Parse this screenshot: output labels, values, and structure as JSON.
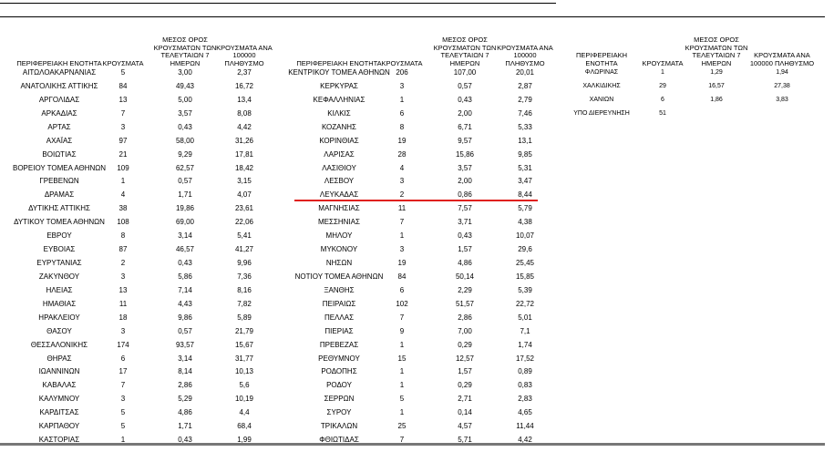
{
  "tables": [
    {
      "headers": [
        "ΠΕΡΙΦΕΡΕΙΑΚΗ ΕΝΟΤΗΤΑ",
        "ΚΡΟΥΣΜΑΤΑ",
        "ΜΕΣΟΣ ΟΡΟΣ ΚΡΟΥΣΜΑΤΩΝ ΤΩΝ ΤΕΛΕΥΤΑΙΩΝ 7 ΗΜΕΡΩΝ",
        "ΚΡΟΥΣΜΑΤΑ ΑΝΑ 100000 ΠΛΗΘΥΣΜΟ"
      ],
      "rows": [
        [
          "ΑΙΤΩΛΟΑΚΑΡΝΑΝΙΑΣ",
          "5",
          "3,00",
          "2,37"
        ],
        [
          "ΑΝΑΤΟΛΙΚΗΣ ΑΤΤΙΚΗΣ",
          "84",
          "49,43",
          "16,72"
        ],
        [
          "ΑΡΓΟΛΙΔΑΣ",
          "13",
          "5,00",
          "13,4"
        ],
        [
          "ΑΡΚΑΔΙΑΣ",
          "7",
          "3,57",
          "8,08"
        ],
        [
          "ΑΡΤΑΣ",
          "3",
          "0,43",
          "4,42"
        ],
        [
          "ΑΧΑΪΑΣ",
          "97",
          "58,00",
          "31,26"
        ],
        [
          "ΒΟΙΩΤΙΑΣ",
          "21",
          "9,29",
          "17,81"
        ],
        [
          "ΒΟΡΕΙΟΥ ΤΟΜΕΑ ΑΘΗΝΩΝ",
          "109",
          "62,57",
          "18,42"
        ],
        [
          "ΓΡΕΒΕΝΩΝ",
          "1",
          "0,57",
          "3,15"
        ],
        [
          "ΔΡΑΜΑΣ",
          "4",
          "1,71",
          "4,07"
        ],
        [
          "ΔΥΤΙΚΗΣ ΑΤΤΙΚΗΣ",
          "38",
          "19,86",
          "23,61"
        ],
        [
          "ΔΥΤΙΚΟΥ ΤΟΜΕΑ ΑΘΗΝΩΝ",
          "108",
          "69,00",
          "22,06"
        ],
        [
          "ΕΒΡΟΥ",
          "8",
          "3,14",
          "5,41"
        ],
        [
          "ΕΥΒΟΙΑΣ",
          "87",
          "46,57",
          "41,27"
        ],
        [
          "ΕΥΡΥΤΑΝΙΑΣ",
          "2",
          "0,43",
          "9,96"
        ],
        [
          "ΖΑΚΥΝΘΟΥ",
          "3",
          "5,86",
          "7,36"
        ],
        [
          "ΗΛΕΙΑΣ",
          "13",
          "7,14",
          "8,16"
        ],
        [
          "ΗΜΑΘΙΑΣ",
          "11",
          "4,43",
          "7,82"
        ],
        [
          "ΗΡΑΚΛΕΙΟΥ",
          "18",
          "9,86",
          "5,89"
        ],
        [
          "ΘΑΣΟΥ",
          "3",
          "0,57",
          "21,79"
        ],
        [
          "ΘΕΣΣΑΛΟΝΙΚΗΣ",
          "174",
          "93,57",
          "15,67"
        ],
        [
          "ΘΗΡΑΣ",
          "6",
          "3,14",
          "31,77"
        ],
        [
          "ΙΩΑΝΝΙΝΩΝ",
          "17",
          "8,14",
          "10,13"
        ],
        [
          "ΚΑΒΑΛΑΣ",
          "7",
          "2,86",
          "5,6"
        ],
        [
          "ΚΑΛΥΜΝΟΥ",
          "3",
          "5,29",
          "10,19"
        ],
        [
          "ΚΑΡΔΙΤΣΑΣ",
          "5",
          "4,86",
          "4,4"
        ],
        [
          "ΚΑΡΠΑΘΟΥ",
          "5",
          "1,71",
          "68,4"
        ],
        [
          "ΚΑΣΤΟΡΙΑΣ",
          "1",
          "0,43",
          "1,99"
        ]
      ]
    },
    {
      "headers": [
        "ΠΕΡΙΦΕΡΕΙΑΚΗ ΕΝΟΤΗΤΑ",
        "ΚΡΟΥΣΜΑΤΑ",
        "ΜΕΣΟΣ ΟΡΟΣ ΚΡΟΥΣΜΑΤΩΝ ΤΩΝ ΤΕΛΕΥΤΑΙΩΝ 7 ΗΜΕΡΩΝ",
        "ΚΡΟΥΣΜΑΤΑ ΑΝΑ 100000 ΠΛΗΘΥΣΜΟ"
      ],
      "rows": [
        [
          "ΚΕΝΤΡΙΚΟΥ ΤΟΜΕΑ ΑΘΗΝΩΝ",
          "206",
          "107,00",
          "20,01"
        ],
        [
          "ΚΕΡΚΥΡΑΣ",
          "3",
          "0,57",
          "2,87"
        ],
        [
          "ΚΕΦΑΛΛΗΝΙΑΣ",
          "1",
          "0,43",
          "2,79"
        ],
        [
          "ΚΙΛΚΙΣ",
          "6",
          "2,00",
          "7,46"
        ],
        [
          "ΚΟΖΑΝΗΣ",
          "8",
          "6,71",
          "5,33"
        ],
        [
          "ΚΟΡΙΝΘΙΑΣ",
          "19",
          "9,57",
          "13,1"
        ],
        [
          "ΛΑΡΙΣΑΣ",
          "28",
          "15,86",
          "9,85"
        ],
        [
          "ΛΑΣΙΘΙΟΥ",
          "4",
          "3,57",
          "5,31"
        ],
        [
          "ΛΕΣΒΟΥ",
          "3",
          "2,00",
          "3,47"
        ],
        [
          "ΛΕΥΚΑΔΑΣ",
          "2",
          "0,86",
          "8,44"
        ],
        [
          "ΜΑΓΝΗΣΙΑΣ",
          "11",
          "7,57",
          "5,79"
        ],
        [
          "ΜΕΣΣΗΝΙΑΣ",
          "7",
          "3,71",
          "4,38"
        ],
        [
          "ΜΗΛΟΥ",
          "1",
          "0,43",
          "10,07"
        ],
        [
          "ΜΥΚΟΝΟΥ",
          "3",
          "1,57",
          "29,6"
        ],
        [
          "ΝΗΣΩΝ",
          "19",
          "4,86",
          "25,45"
        ],
        [
          "ΝΟΤΙΟΥ ΤΟΜΕΑ ΑΘΗΝΩΝ",
          "84",
          "50,14",
          "15,85"
        ],
        [
          "ΞΑΝΘΗΣ",
          "6",
          "2,29",
          "5,39"
        ],
        [
          "ΠΕΙΡΑΙΩΣ",
          "102",
          "51,57",
          "22,72"
        ],
        [
          "ΠΕΛΛΑΣ",
          "7",
          "2,86",
          "5,01"
        ],
        [
          "ΠΙΕΡΙΑΣ",
          "9",
          "7,00",
          "7,1"
        ],
        [
          "ΠΡΕΒΕΖΑΣ",
          "1",
          "0,29",
          "1,74"
        ],
        [
          "ΡΕΘΥΜΝΟΥ",
          "15",
          "12,57",
          "17,52"
        ],
        [
          "ΡΟΔΟΠΗΣ",
          "1",
          "1,57",
          "0,89"
        ],
        [
          "ΡΟΔΟΥ",
          "1",
          "0,29",
          "0,83"
        ],
        [
          "ΣΕΡΡΩΝ",
          "5",
          "2,71",
          "2,83"
        ],
        [
          "ΣΥΡΟΥ",
          "1",
          "0,14",
          "4,65"
        ],
        [
          "ΤΡΙΚΑΛΩΝ",
          "25",
          "4,57",
          "11,44"
        ],
        [
          "ΦΘΙΩΤΙΔΑΣ",
          "7",
          "5,71",
          "4,42"
        ]
      ]
    },
    {
      "headers": [
        "ΠΕΡΙΦΕΡΕΙΑΚΗ ΕΝΟΤΗΤΑ",
        "ΚΡΟΥΣΜΑΤΑ",
        "ΜΕΣΟΣ ΟΡΟΣ ΚΡΟΥΣΜΑΤΩΝ ΤΩΝ ΤΕΛΕΥΤΑΙΩΝ 7 ΗΜΕΡΩΝ",
        "ΚΡΟΥΣΜΑΤΑ ΑΝΑ 100000 ΠΛΗΘΥΣΜΟ"
      ],
      "rows": [
        [
          "ΦΛΩΡΙΝΑΣ",
          "1",
          "1,29",
          "1,94"
        ],
        [
          "ΧΑΛΚΙΔΙΚΗΣ",
          "29",
          "16,57",
          "27,38"
        ],
        [
          "ΧΑΝΙΩΝ",
          "6",
          "1,86",
          "3,83"
        ],
        [
          "ΥΠΟ ΔΙΕΡΕΥΝΗΣΗ",
          "51"
        ]
      ]
    }
  ]
}
